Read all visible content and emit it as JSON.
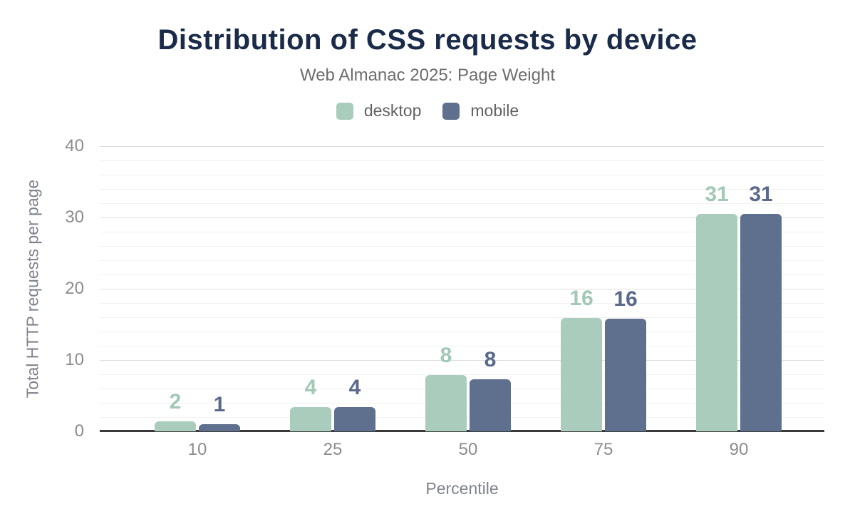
{
  "header": {
    "title": "Distribution of CSS requests by device",
    "subtitle": "Web Almanac 2025: Page Weight"
  },
  "colors": {
    "title": "#1a2b49",
    "desktop": "#a9ccbc",
    "mobile": "#5f6f8e",
    "desktop_label": "#a3c8b6",
    "mobile_label": "#5a6a8a",
    "axis_line": "#3a3a3a",
    "tick_text": "#8c8c8c"
  },
  "chart_data": {
    "type": "bar",
    "title": "Distribution of CSS requests by device",
    "subtitle": "Web Almanac 2025: Page Weight",
    "categories": [
      "10",
      "25",
      "50",
      "75",
      "90"
    ],
    "series": [
      {
        "name": "desktop",
        "color": "#a9ccbc",
        "label_color": "#a3c8b6",
        "values": [
          2,
          4,
          8,
          16,
          31
        ],
        "labels": [
          "2",
          "4",
          "8",
          "16",
          "31"
        ],
        "drawn_heights": [
          1.4,
          3.4,
          7.9,
          15.9,
          30.5
        ]
      },
      {
        "name": "mobile",
        "color": "#5f6f8e",
        "label_color": "#5a6a8a",
        "values": [
          1,
          4,
          8,
          16,
          31
        ],
        "labels": [
          "1",
          "4",
          "8",
          "16",
          "31"
        ],
        "drawn_heights": [
          1.0,
          3.4,
          7.3,
          15.8,
          30.5
        ]
      }
    ],
    "xlabel": "Percentile",
    "ylabel": "Total HTTP requests per page",
    "ylim": [
      0,
      40
    ],
    "yticks": [
      0,
      10,
      20,
      30,
      40
    ],
    "y_major_step": 10,
    "y_minor_step": 2,
    "grid": "horizontal-only",
    "legend_position": "top-center"
  }
}
